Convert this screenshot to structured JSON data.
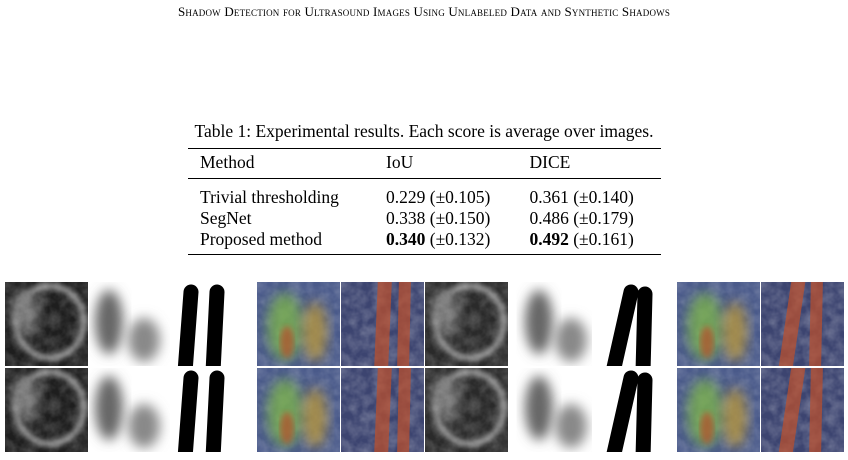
{
  "header": {
    "title": "Shadow Detection for Ultrasound Images Using Unlabeled Data and Synthetic Shadows"
  },
  "table": {
    "caption": "Table 1: Experimental results. Each score is average over images.",
    "columns": [
      "Method",
      "IoU",
      "DICE"
    ],
    "rows": [
      {
        "method": "Trivial thresholding",
        "iou": {
          "score": "0.229",
          "sd": "(±0.105)",
          "bold": false
        },
        "dice": {
          "score": "0.361",
          "sd": "(±0.140)",
          "bold": false
        }
      },
      {
        "method": "SegNet",
        "iou": {
          "score": "0.338",
          "sd": "(±0.150)",
          "bold": false
        },
        "dice": {
          "score": "0.486",
          "sd": "(±0.179)",
          "bold": false
        }
      },
      {
        "method": "Proposed method",
        "iou": {
          "score": "0.340",
          "sd": "(±0.132)",
          "bold": true
        },
        "dice": {
          "score": "0.492",
          "sd": "(±0.161)",
          "bold": true
        }
      }
    ]
  }
}
